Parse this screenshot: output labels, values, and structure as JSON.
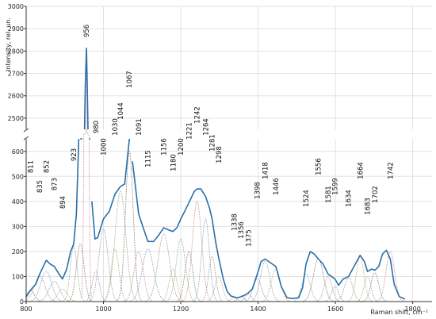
{
  "chart_data": {
    "type": "line",
    "title": "",
    "xlabel": "Raman shift, cm⁻¹",
    "ylabel": "Intensity, rel. un.",
    "xlim": [
      800,
      1850
    ],
    "x_ticks": [
      800,
      1000,
      1200,
      1400,
      1600,
      1800
    ],
    "y_panels": [
      {
        "range": [
          0,
          650
        ],
        "ticks": [
          0,
          100,
          200,
          300,
          400,
          500,
          600
        ]
      },
      {
        "range": [
          2450,
          3000
        ],
        "ticks": [
          2500,
          2600,
          2700,
          2800,
          2900,
          3000
        ]
      }
    ],
    "grid": true,
    "colors": {
      "total": "#2a6fa8",
      "components": "#8a8a8a"
    },
    "series": [
      {
        "points": [
          [
            800,
            18
          ],
          [
            811,
            45
          ],
          [
            825,
            70
          ],
          [
            835,
            110
          ],
          [
            852,
            165
          ],
          [
            862,
            150
          ],
          [
            873,
            140
          ],
          [
            885,
            110
          ],
          [
            894,
            90
          ],
          [
            905,
            130
          ],
          [
            915,
            200
          ],
          [
            923,
            230
          ],
          [
            930,
            350
          ],
          [
            936,
            700
          ],
          [
            940,
            1400
          ],
          [
            945,
            2400
          ],
          [
            950,
            2650
          ],
          [
            956,
            2815
          ],
          [
            960,
            2400
          ],
          [
            963,
            1500
          ],
          [
            966,
            900
          ],
          [
            970,
            400
          ],
          [
            978,
            250
          ],
          [
            985,
            255
          ],
          [
            1000,
            330
          ],
          [
            1015,
            360
          ],
          [
            1030,
            430
          ],
          [
            1044,
            460
          ],
          [
            1055,
            470
          ],
          [
            1067,
            655
          ],
          [
            1075,
            560
          ],
          [
            1091,
            350
          ],
          [
            1105,
            285
          ],
          [
            1115,
            240
          ],
          [
            1130,
            240
          ],
          [
            1145,
            270
          ],
          [
            1156,
            295
          ],
          [
            1170,
            285
          ],
          [
            1180,
            280
          ],
          [
            1190,
            295
          ],
          [
            1200,
            330
          ],
          [
            1210,
            360
          ],
          [
            1221,
            395
          ],
          [
            1235,
            440
          ],
          [
            1242,
            450
          ],
          [
            1252,
            450
          ],
          [
            1264,
            420
          ],
          [
            1275,
            370
          ],
          [
            1281,
            330
          ],
          [
            1290,
            240
          ],
          [
            1298,
            175
          ],
          [
            1310,
            90
          ],
          [
            1320,
            40
          ],
          [
            1330,
            22
          ],
          [
            1338,
            18
          ],
          [
            1348,
            15
          ],
          [
            1356,
            20
          ],
          [
            1365,
            25
          ],
          [
            1375,
            35
          ],
          [
            1385,
            50
          ],
          [
            1398,
            110
          ],
          [
            1408,
            160
          ],
          [
            1418,
            170
          ],
          [
            1432,
            155
          ],
          [
            1446,
            140
          ],
          [
            1460,
            60
          ],
          [
            1475,
            15
          ],
          [
            1490,
            12
          ],
          [
            1505,
            15
          ],
          [
            1515,
            55
          ],
          [
            1524,
            150
          ],
          [
            1535,
            200
          ],
          [
            1545,
            190
          ],
          [
            1556,
            170
          ],
          [
            1568,
            150
          ],
          [
            1581,
            110
          ],
          [
            1590,
            100
          ],
          [
            1599,
            90
          ],
          [
            1608,
            65
          ],
          [
            1620,
            90
          ],
          [
            1634,
            100
          ],
          [
            1648,
            140
          ],
          [
            1664,
            185
          ],
          [
            1675,
            160
          ],
          [
            1683,
            120
          ],
          [
            1694,
            130
          ],
          [
            1702,
            125
          ],
          [
            1712,
            140
          ],
          [
            1722,
            190
          ],
          [
            1732,
            205
          ],
          [
            1742,
            170
          ],
          [
            1752,
            70
          ],
          [
            1765,
            20
          ],
          [
            1780,
            10
          ]
        ]
      }
    ],
    "components": [
      {
        "center": 811,
        "height": 45,
        "width": 10
      },
      {
        "center": 835,
        "height": 100,
        "width": 14
      },
      {
        "center": 852,
        "height": 120,
        "width": 14
      },
      {
        "center": 873,
        "height": 80,
        "width": 14
      },
      {
        "center": 894,
        "height": 50,
        "width": 12
      },
      {
        "center": 923,
        "height": 220,
        "width": 9
      },
      {
        "center": 940,
        "height": 230,
        "width": 10
      },
      {
        "center": 956,
        "height": 2790,
        "width": 4
      },
      {
        "center": 980,
        "height": 120,
        "width": 9
      },
      {
        "center": 1000,
        "height": 290,
        "width": 12
      },
      {
        "center": 1030,
        "height": 210,
        "width": 10
      },
      {
        "center": 1044,
        "height": 440,
        "width": 14
      },
      {
        "center": 1067,
        "height": 600,
        "width": 10
      },
      {
        "center": 1091,
        "height": 200,
        "width": 12
      },
      {
        "center": 1115,
        "height": 210,
        "width": 15
      },
      {
        "center": 1156,
        "height": 270,
        "width": 15
      },
      {
        "center": 1180,
        "height": 130,
        "width": 10
      },
      {
        "center": 1200,
        "height": 250,
        "width": 12
      },
      {
        "center": 1221,
        "height": 200,
        "width": 10
      },
      {
        "center": 1242,
        "height": 400,
        "width": 12
      },
      {
        "center": 1264,
        "height": 330,
        "width": 10
      },
      {
        "center": 1281,
        "height": 180,
        "width": 9
      },
      {
        "center": 1298,
        "height": 100,
        "width": 10
      },
      {
        "center": 1338,
        "height": 15,
        "width": 8
      },
      {
        "center": 1356,
        "height": 20,
        "width": 8
      },
      {
        "center": 1375,
        "height": 30,
        "width": 8
      },
      {
        "center": 1398,
        "height": 90,
        "width": 11
      },
      {
        "center": 1418,
        "height": 160,
        "width": 12
      },
      {
        "center": 1446,
        "height": 130,
        "width": 12
      },
      {
        "center": 1524,
        "height": 110,
        "width": 11
      },
      {
        "center": 1556,
        "height": 170,
        "width": 13
      },
      {
        "center": 1581,
        "height": 100,
        "width": 10
      },
      {
        "center": 1599,
        "height": 60,
        "width": 9
      },
      {
        "center": 1634,
        "height": 95,
        "width": 11
      },
      {
        "center": 1664,
        "height": 180,
        "width": 10
      },
      {
        "center": 1683,
        "height": 100,
        "width": 9
      },
      {
        "center": 1702,
        "height": 115,
        "width": 10
      },
      {
        "center": 1742,
        "height": 200,
        "width": 11
      }
    ],
    "peak_labels": [
      "811",
      "835",
      "852",
      "873",
      "894",
      "923",
      "956",
      "980",
      "1000",
      "1030",
      "1044",
      "1067",
      "1091",
      "1115",
      "1156",
      "1180",
      "1200",
      "1221",
      "1242",
      "1264",
      "1281",
      "1298",
      "1338",
      "1356",
      "1375",
      "1398",
      "1418",
      "1446",
      "1524",
      "1556",
      "1581",
      "1599",
      "1634",
      "1664",
      "1683",
      "1702",
      "1742"
    ]
  }
}
